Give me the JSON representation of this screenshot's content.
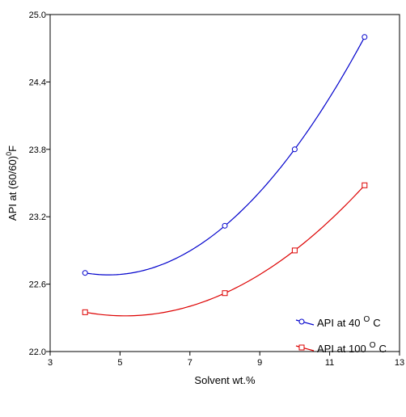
{
  "chart_data": {
    "type": "line",
    "xlabel": "Solvent wt.%",
    "ylabel_main": "API at (60/60)",
    "ylabel_sup": "0",
    "ylabel_end": "F",
    "xlim": [
      3,
      13
    ],
    "ylim": [
      22.0,
      25.0
    ],
    "xticks": [
      3,
      5,
      7,
      9,
      11,
      13
    ],
    "yticks": [
      22.0,
      22.6,
      23.2,
      23.8,
      24.4,
      25.0
    ],
    "xtick_labels": [
      "3",
      "5",
      "7",
      "9",
      "11",
      "13"
    ],
    "ytick_labels": [
      "22.0",
      "22.6",
      "23.2",
      "23.8",
      "24.4",
      "25.0"
    ],
    "grid": false,
    "legend_position": "bottom-right",
    "series": [
      {
        "name_main": "API at 40",
        "name_sup": "O",
        "name_end": "C",
        "marker": "circle",
        "color": "#0000cc",
        "x": [
          4,
          8,
          10,
          12
        ],
        "y": [
          22.7,
          23.12,
          23.8,
          24.8
        ]
      },
      {
        "name_main": "API at 100",
        "name_sup": "O",
        "name_end": "C",
        "marker": "square",
        "color": "#dd0000",
        "x": [
          4,
          8,
          10,
          12
        ],
        "y": [
          22.35,
          22.52,
          22.9,
          23.48
        ]
      }
    ]
  }
}
